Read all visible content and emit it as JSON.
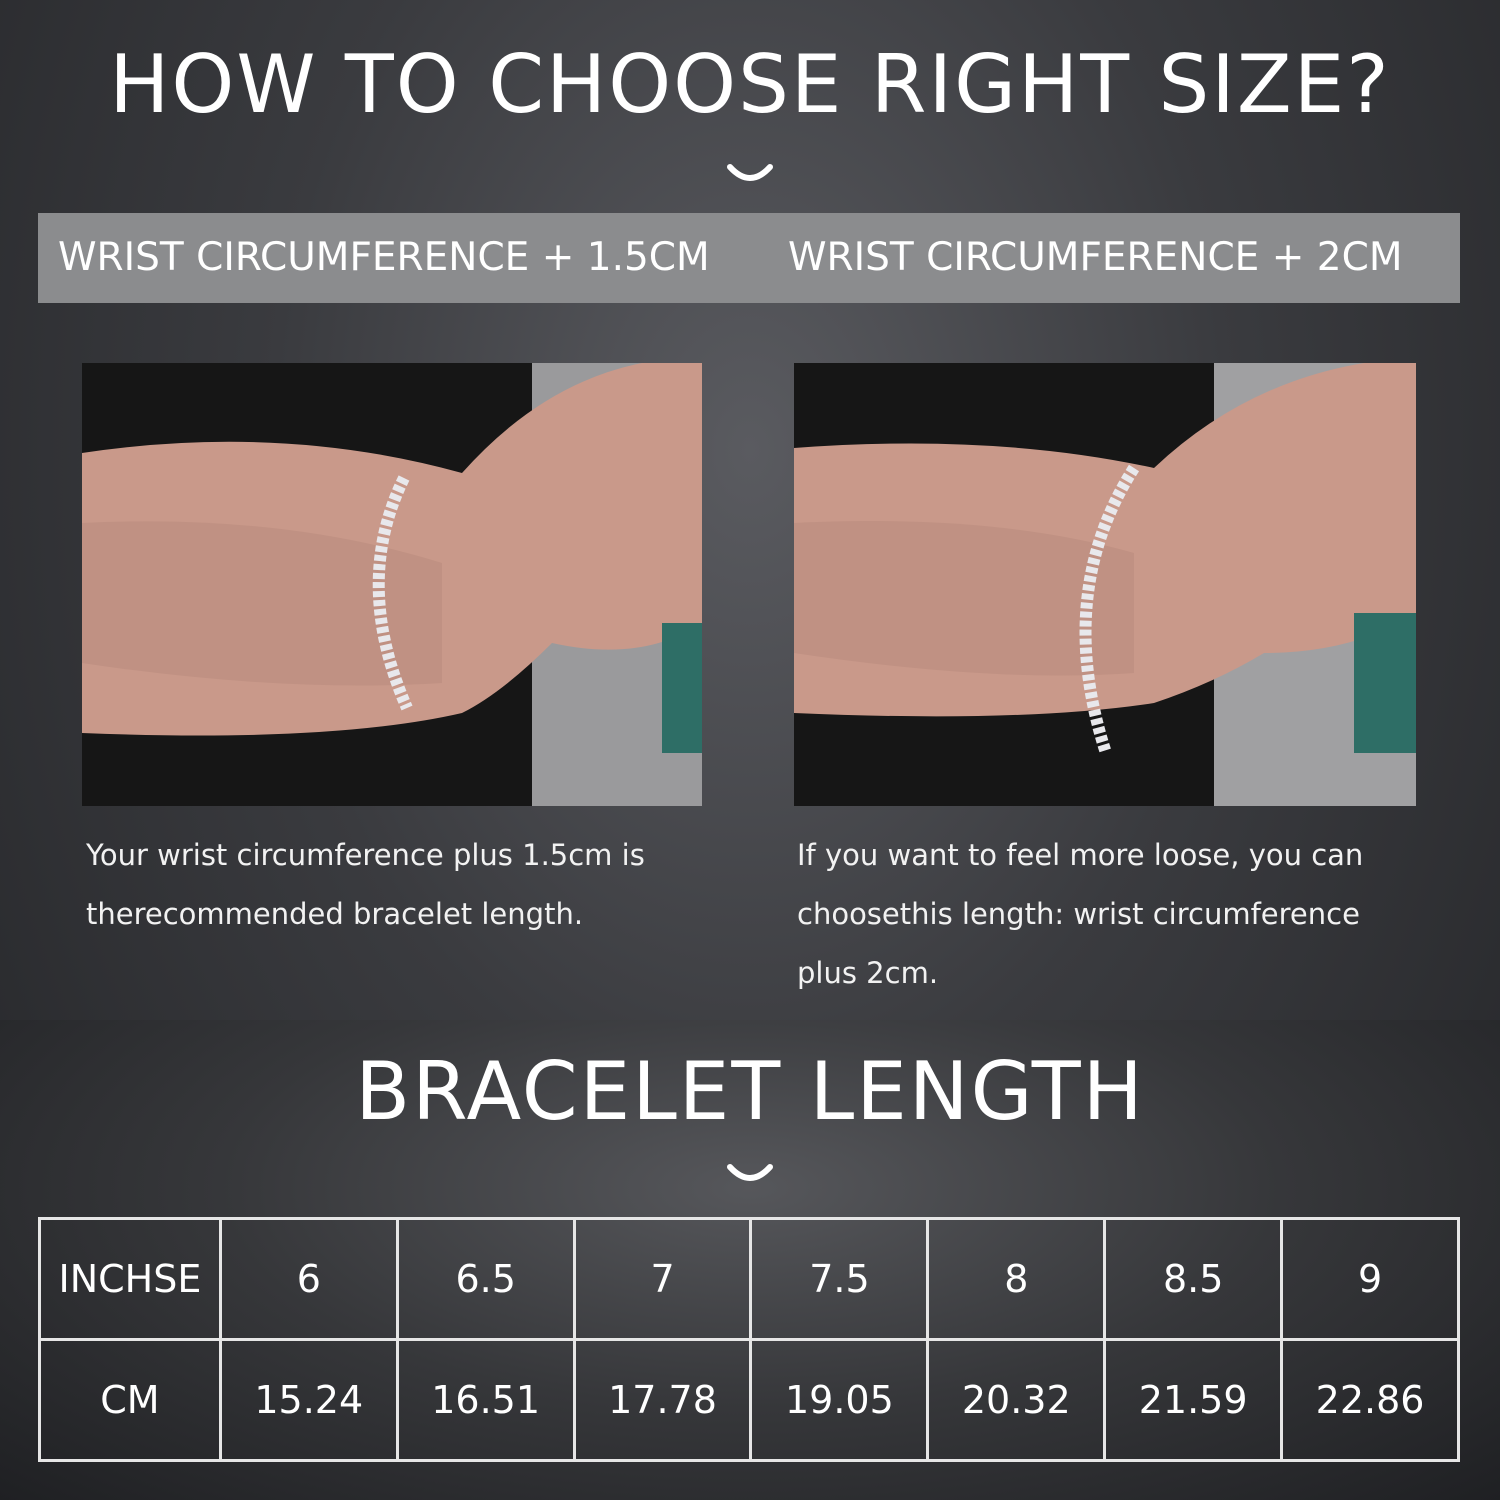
{
  "header": {
    "title": "HOW TO CHOOSE RIGHT SIZE?",
    "chevron_icon": "chevron-down-icon"
  },
  "band": {
    "left": "WRIST CIRCUMFERENCE + 1.5CM",
    "right": "WRIST CIRCUMFERENCE + 2CM"
  },
  "captions": {
    "left": [
      "Your wrist circumference plus 1.5cm is",
      "therecommended bracelet length."
    ],
    "right": [
      "If you want to feel more loose, you can",
      "choosethis length: wrist circumference",
      "plus 2cm."
    ]
  },
  "section2": {
    "title": "BRACELET LENGTH"
  },
  "table": {
    "rows": [
      {
        "label": "INCHSE",
        "values": [
          "6",
          "6.5",
          "7",
          "7.5",
          "8",
          "8.5",
          "9"
        ]
      },
      {
        "label": "CM",
        "values": [
          "15.24",
          "16.51",
          "17.78",
          "19.05",
          "20.32",
          "21.59",
          "22.86"
        ]
      }
    ]
  }
}
